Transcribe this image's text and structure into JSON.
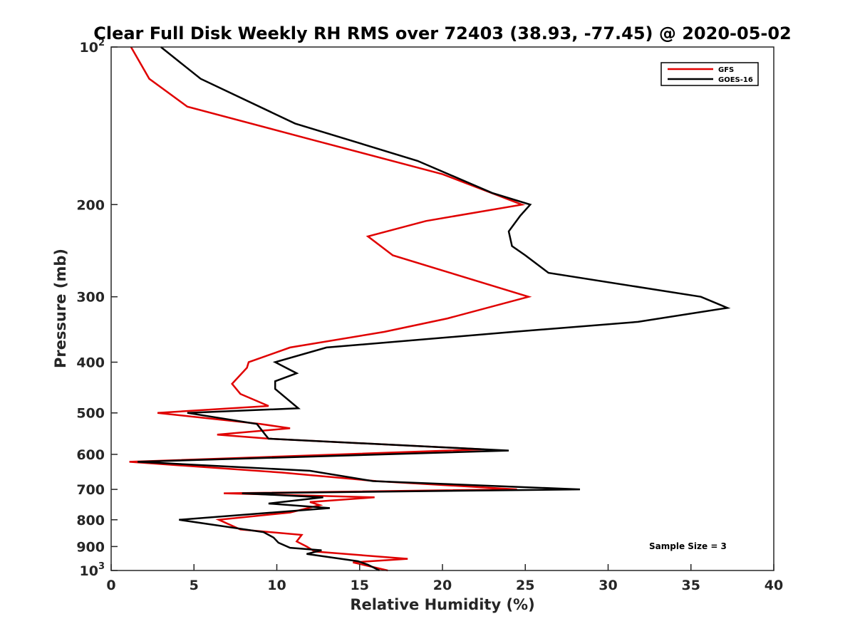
{
  "chart_data": {
    "type": "line",
    "title": "Clear Full Disk Weekly RH RMS over 72403 (38.93, -77.45) @ 2020-05-02",
    "xlabel": "Relative Humidity (%)",
    "ylabel": "Pressure (mb)",
    "xlim": [
      0,
      40
    ],
    "ylim": [
      100,
      1000
    ],
    "y_scale": "log",
    "y_reversed": true,
    "grid": false,
    "legend_position": "top-right",
    "x_ticks": [
      0,
      5,
      10,
      15,
      20,
      25,
      30,
      35,
      40
    ],
    "x_tick_labels": [
      "0",
      "5",
      "10",
      "15",
      "20",
      "25",
      "30",
      "35",
      "40"
    ],
    "y_ticks": [
      {
        "value": 100,
        "base": "10",
        "exp": "2"
      },
      {
        "value": 200,
        "label": "200"
      },
      {
        "value": 300,
        "label": "300"
      },
      {
        "value": 400,
        "label": "400"
      },
      {
        "value": 500,
        "label": "500"
      },
      {
        "value": 600,
        "label": "600"
      },
      {
        "value": 700,
        "label": "700"
      },
      {
        "value": 800,
        "label": "800"
      },
      {
        "value": 900,
        "label": "900"
      },
      {
        "value": 1000,
        "base": "10",
        "exp": "3"
      }
    ],
    "annotation": "Sample Size = 3",
    "series": [
      {
        "name": "GFS",
        "color": "#e00000",
        "points": [
          [
            1.2,
            100
          ],
          [
            2.3,
            115
          ],
          [
            4.6,
            130
          ],
          [
            12.0,
            150
          ],
          [
            20.0,
            175
          ],
          [
            24.8,
            200
          ],
          [
            19.0,
            215
          ],
          [
            15.5,
            230
          ],
          [
            17.0,
            250
          ],
          [
            25.2,
            300
          ],
          [
            20.3,
            330
          ],
          [
            16.5,
            350
          ],
          [
            10.8,
            375
          ],
          [
            8.3,
            400
          ],
          [
            8.2,
            410
          ],
          [
            7.3,
            440
          ],
          [
            7.8,
            460
          ],
          [
            9.5,
            485
          ],
          [
            2.8,
            500
          ],
          [
            9.0,
            525
          ],
          [
            10.8,
            535
          ],
          [
            6.4,
            550
          ],
          [
            9.5,
            560
          ],
          [
            22.5,
            587
          ],
          [
            1.1,
            620
          ],
          [
            10.3,
            650
          ],
          [
            16.0,
            675
          ],
          [
            24.5,
            700
          ],
          [
            6.8,
            712
          ],
          [
            15.9,
            725
          ],
          [
            12.0,
            740
          ],
          [
            12.6,
            750
          ],
          [
            10.8,
            775
          ],
          [
            6.5,
            800
          ],
          [
            7.8,
            835
          ],
          [
            11.5,
            855
          ],
          [
            11.2,
            880
          ],
          [
            11.8,
            900
          ],
          [
            12.3,
            920
          ],
          [
            17.9,
            950
          ],
          [
            14.6,
            965
          ],
          [
            16.7,
            1000
          ]
        ]
      },
      {
        "name": "GOES-16",
        "color": "#000000",
        "points": [
          [
            3.0,
            100
          ],
          [
            5.4,
            115
          ],
          [
            11.1,
            140
          ],
          [
            18.5,
            165
          ],
          [
            23.0,
            190
          ],
          [
            25.3,
            200
          ],
          [
            24.7,
            210
          ],
          [
            24.0,
            225
          ],
          [
            24.2,
            240
          ],
          [
            25.0,
            250
          ],
          [
            26.4,
            270
          ],
          [
            35.6,
            300
          ],
          [
            37.2,
            315
          ],
          [
            31.8,
            335
          ],
          [
            24.3,
            350
          ],
          [
            13.0,
            375
          ],
          [
            9.9,
            400
          ],
          [
            11.2,
            420
          ],
          [
            9.9,
            435
          ],
          [
            9.9,
            450
          ],
          [
            11.3,
            490
          ],
          [
            4.6,
            500
          ],
          [
            8.8,
            525
          ],
          [
            9.3,
            550
          ],
          [
            9.5,
            560
          ],
          [
            24.0,
            590
          ],
          [
            1.6,
            620
          ],
          [
            12.0,
            645
          ],
          [
            15.8,
            675
          ],
          [
            28.3,
            700
          ],
          [
            7.9,
            712
          ],
          [
            12.8,
            725
          ],
          [
            9.5,
            745
          ],
          [
            13.2,
            760
          ],
          [
            4.1,
            800
          ],
          [
            9.2,
            845
          ],
          [
            9.8,
            865
          ],
          [
            10.1,
            885
          ],
          [
            10.8,
            905
          ],
          [
            12.7,
            915
          ],
          [
            11.8,
            930
          ],
          [
            14.9,
            960
          ],
          [
            15.5,
            975
          ],
          [
            16.2,
            1000
          ]
        ]
      }
    ]
  }
}
